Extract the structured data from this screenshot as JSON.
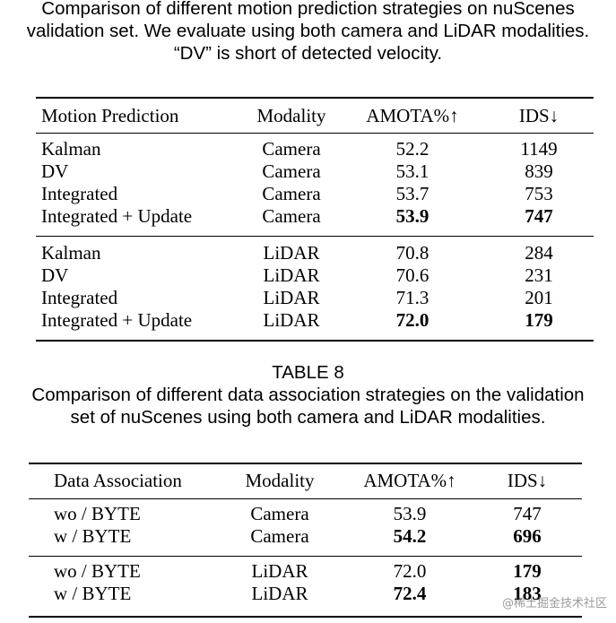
{
  "caption1": {
    "lines": [
      "Comparison of different motion prediction strategies on nuScenes",
      "validation set. We evaluate using both camera and LiDAR modalities.",
      "“DV” is short of detected velocity."
    ]
  },
  "table1": {
    "headers": [
      "Motion Prediction",
      "Modality",
      "AMOTA%↑",
      "IDS↓"
    ],
    "groups": [
      [
        {
          "method": "Kalman",
          "modality": "Camera",
          "amota": "52.2",
          "ids": "1149"
        },
        {
          "method": "DV",
          "modality": "Camera",
          "amota": "53.1",
          "ids": "839"
        },
        {
          "method": "Integrated",
          "modality": "Camera",
          "amota": "53.7",
          "ids": "753"
        },
        {
          "method": "Integrated + Update",
          "modality": "Camera",
          "amota": "53.9",
          "ids": "747"
        }
      ],
      [
        {
          "method": "Kalman",
          "modality": "LiDAR",
          "amota": "70.8",
          "ids": "284"
        },
        {
          "method": "DV",
          "modality": "LiDAR",
          "amota": "70.6",
          "ids": "231"
        },
        {
          "method": "Integrated",
          "modality": "LiDAR",
          "amota": "71.3",
          "ids": "201"
        },
        {
          "method": "Integrated + Update",
          "modality": "LiDAR",
          "amota": "72.0",
          "ids": "179"
        }
      ]
    ]
  },
  "caption2": {
    "label": "TABLE 8",
    "lines": [
      "Comparison of different data association strategies on the validation",
      "set of nuScenes using both camera and LiDAR modalities."
    ]
  },
  "table2": {
    "headers": [
      "Data Association",
      "Modality",
      "AMOTA%↑",
      "IDS↓"
    ],
    "groups": [
      [
        {
          "method": "wo / BYTE",
          "modality": "Camera",
          "amota": "53.9",
          "ids": "747"
        },
        {
          "method": "w / BYTE",
          "modality": "Camera",
          "amota": "54.2",
          "ids": "696"
        }
      ],
      [
        {
          "method": "wo / BYTE",
          "modality": "LiDAR",
          "amota": "72.0",
          "ids": "179"
        },
        {
          "method": "w / BYTE",
          "modality": "LiDAR",
          "amota": "72.4",
          "ids": "183"
        }
      ]
    ]
  },
  "watermark": "@稀土掘金技术社区"
}
